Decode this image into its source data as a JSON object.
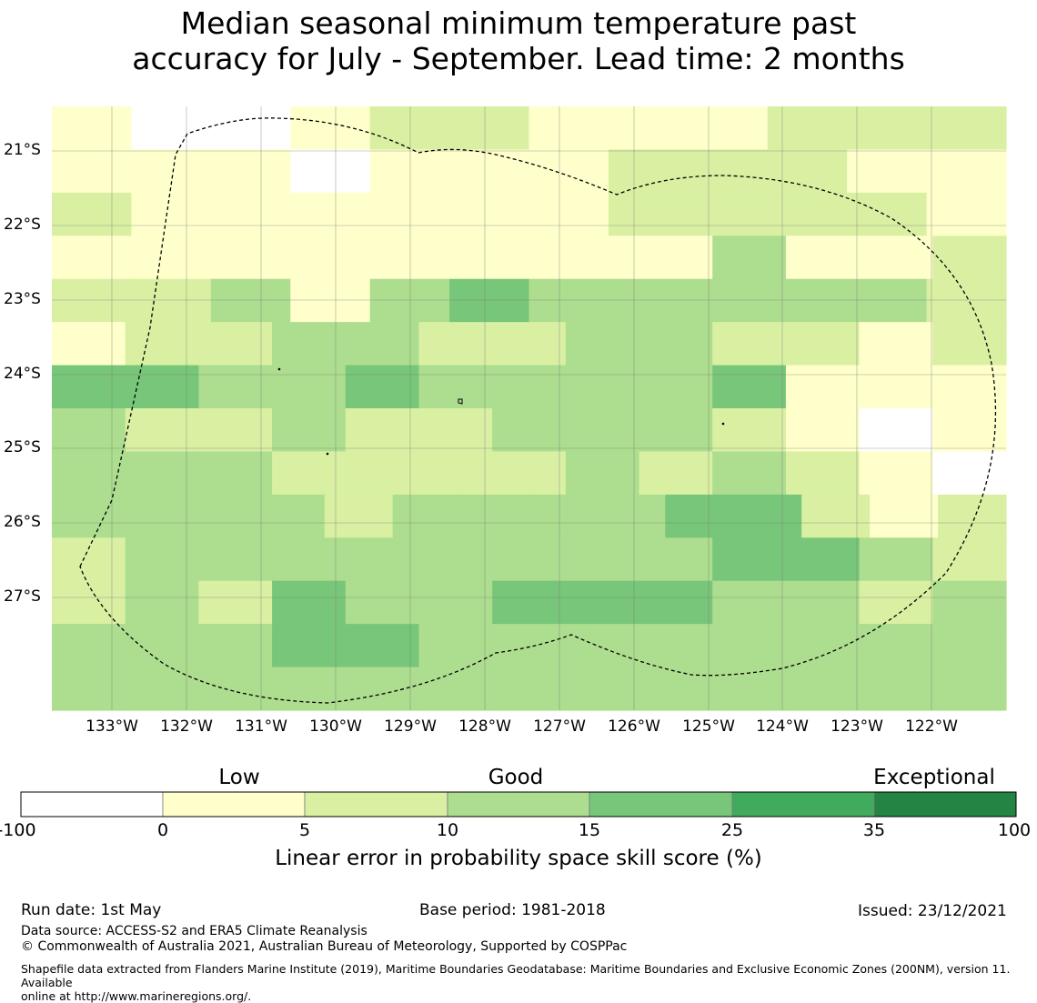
{
  "title_line1": "Median seasonal minimum temperature past",
  "title_line2": "accuracy for July - September. Lead time: 2 months",
  "map": {
    "lat_labels": [
      "21°S",
      "22°S",
      "23°S",
      "24°S",
      "25°S",
      "26°S",
      "27°S"
    ],
    "lon_labels": [
      "133°W",
      "132°W",
      "131°W",
      "130°W",
      "129°W",
      "128°W",
      "127°W",
      "126°W",
      "125°W",
      "124°W",
      "123°W",
      "122°W"
    ],
    "colors": [
      "#ffffff",
      "#ffffcc",
      "#d9f0a3",
      "#addd8e",
      "#78c679",
      "#41ab5d",
      "#238443"
    ],
    "grid_rows": [
      "100122111222",
      "111011122211",
      "211111122221",
      "1111111113112",
      "223134333332",
      "1223322332212",
      "4433433334111",
      "3223223332101",
      "3332222323210",
      "33332333344212",
      "2333333334432",
      "2324334443323",
      "3334433333333",
      "3333333333333"
    ]
  },
  "legend": {
    "category_labels": [
      "Low",
      "Good",
      "Exceptional"
    ],
    "ticks": [
      "-100",
      "0",
      "5",
      "10",
      "15",
      "25",
      "35",
      "100"
    ],
    "title": "Linear error in probability space skill score (%)"
  },
  "footer": {
    "run_date": "Run date: 1st May",
    "base_period": "Base period: 1981-2018",
    "issued": "Issued: 23/12/2021",
    "data_source": "Data source: ACCESS-S2 and ERA5 Climate Reanalysis",
    "copyright": "© Commonwealth of Australia 2021, Australian Bureau of Meteorology, Supported by COSPPac",
    "shapefile_line1": "Shapefile data extracted from Flanders Marine Institute (2019), Maritime Boundaries Geodatabase: Maritime Boundaries and Exclusive Economic Zones (200NM), version 11. Available",
    "shapefile_line2": "online at http://www.marineregions.org/."
  }
}
